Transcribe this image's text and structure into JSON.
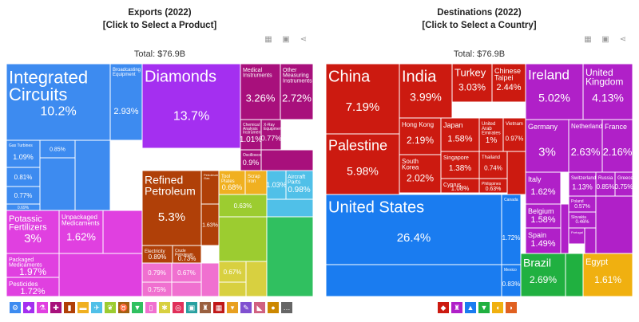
{
  "chart_data": [
    {
      "type": "treemap",
      "title": "Exports (2022)",
      "subtitle": "[Click to Select a Product]",
      "total_label": "Total: $76.9B",
      "cells": [
        {
          "name": "Integrated Circuits",
          "value": "10.2%",
          "color": "#3d8bf0"
        },
        {
          "name": "Broadcasting Equipment",
          "value": "2.93%",
          "color": "#3d8bf0"
        },
        {
          "name": "Diamonds",
          "value": "13.7%",
          "color": "#a42ff0"
        },
        {
          "name": "Medical Instruments",
          "value": "3.26%",
          "color": "#a8107c"
        },
        {
          "name": "Other Measuring Instruments",
          "value": "2.72%",
          "color": "#a8107c"
        },
        {
          "name": "Chemical Analysis Instruments",
          "value": "1.01%",
          "color": "#a8107c"
        },
        {
          "name": "X-Ray Equipment",
          "value": "0.77%",
          "color": "#a8107c"
        },
        {
          "name": "Oscilloscopes",
          "value": "0.9%",
          "color": "#a8107c"
        },
        {
          "name": "Gas Turbines",
          "value": "1.09%",
          "color": "#3d8bf0"
        },
        {
          "name": "",
          "value": "0.85%",
          "color": "#3d8bf0"
        },
        {
          "name": "",
          "value": "0.81%",
          "color": "#3d8bf0"
        },
        {
          "name": "",
          "value": "0.77%",
          "color": "#3d8bf0"
        },
        {
          "name": "",
          "value": "0.69%",
          "color": "#3d8bf0"
        },
        {
          "name": "Refined Petroleum",
          "value": "5.3%",
          "color": "#b04008"
        },
        {
          "name": "Petroleum Gas",
          "value": "",
          "color": "#b04008"
        },
        {
          "name": "",
          "value": "1.63%",
          "color": "#b04008"
        },
        {
          "name": "Electricity",
          "value": "0.89%",
          "color": "#b04008"
        },
        {
          "name": "Crude Petroleum",
          "value": "0.73%",
          "color": "#b04008"
        },
        {
          "name": "Tool Plates",
          "value": "0.68%",
          "color": "#f0b020"
        },
        {
          "name": "Scrap Iron",
          "value": "",
          "color": "#f0b020"
        },
        {
          "name": "Aircraft Parts",
          "value": "0.98%",
          "color": "#50c0e8"
        },
        {
          "name": "",
          "value": "1.03%",
          "color": "#50c0e8"
        },
        {
          "name": "Potassic Fertilizers",
          "value": "3%",
          "color": "#e040e0"
        },
        {
          "name": "Unpackaged Medicaments",
          "value": "1.62%",
          "color": "#e040e0"
        },
        {
          "name": "Packaged Medicaments",
          "value": "1.97%",
          "color": "#e040e0"
        },
        {
          "name": "Pesticides",
          "value": "1.72%",
          "color": "#e040e0"
        },
        {
          "name": "",
          "value": "0.79%",
          "color": "#f070d0"
        },
        {
          "name": "",
          "value": "0.67%",
          "color": "#f070d0"
        },
        {
          "name": "",
          "value": "0.75%",
          "color": "#f070d0"
        },
        {
          "name": "",
          "value": "0.63%",
          "color": "#9ccc30"
        },
        {
          "name": "",
          "value": "0.67%",
          "color": "#d8d040"
        }
      ]
    },
    {
      "type": "treemap",
      "title": "Destinations (2022)",
      "subtitle": "[Click to Select a Country]",
      "total_label": "Total: $76.9B",
      "cells": [
        {
          "name": "China",
          "value": "7.19%",
          "color": "#cc1a10"
        },
        {
          "name": "India",
          "value": "3.99%",
          "color": "#cc1a10"
        },
        {
          "name": "Turkey",
          "value": "3.03%",
          "color": "#cc1a10"
        },
        {
          "name": "Chinese Taipei",
          "value": "2.44%",
          "color": "#cc1a10"
        },
        {
          "name": "Palestine",
          "value": "5.98%",
          "color": "#cc1a10"
        },
        {
          "name": "Hong Kong",
          "value": "2.19%",
          "color": "#cc1a10"
        },
        {
          "name": "Japan",
          "value": "1.58%",
          "color": "#cc1a10"
        },
        {
          "name": "United Arab Emirates",
          "value": "1%",
          "color": "#cc1a10"
        },
        {
          "name": "Vietnam",
          "value": "0.97%",
          "color": "#cc1a10"
        },
        {
          "name": "Singapore",
          "value": "1.38%",
          "color": "#cc1a10"
        },
        {
          "name": "South Korea",
          "value": "2.02%",
          "color": "#cc1a10"
        },
        {
          "name": "Thailand",
          "value": "0.74%",
          "color": "#cc1a10"
        },
        {
          "name": "Cyprus",
          "value": "1.08%",
          "color": "#cc1a10"
        },
        {
          "name": "Philippines",
          "value": "0.63%",
          "color": "#cc1a10"
        },
        {
          "name": "United States",
          "value": "26.4%",
          "color": "#1a7cf0"
        },
        {
          "name": "Canada",
          "value": "1.72%",
          "color": "#1a7cf0"
        },
        {
          "name": "Mexico",
          "value": "0.83%",
          "color": "#1a7cf0"
        },
        {
          "name": "Ireland",
          "value": "5.02%",
          "color": "#b020c8"
        },
        {
          "name": "United Kingdom",
          "value": "4.13%",
          "color": "#b020c8"
        },
        {
          "name": "Germany",
          "value": "3%",
          "color": "#b020c8"
        },
        {
          "name": "Netherlands",
          "value": "2.63%",
          "color": "#b020c8"
        },
        {
          "name": "France",
          "value": "2.16%",
          "color": "#b020c8"
        },
        {
          "name": "Italy",
          "value": "1.62%",
          "color": "#b020c8"
        },
        {
          "name": "Switzerland",
          "value": "1.13%",
          "color": "#b020c8"
        },
        {
          "name": "Russia",
          "value": "0.85%",
          "color": "#b020c8"
        },
        {
          "name": "Greece",
          "value": "0.75%",
          "color": "#b020c8"
        },
        {
          "name": "Belgium",
          "value": "1.58%",
          "color": "#b020c8"
        },
        {
          "name": "Poland",
          "value": "0.57%",
          "color": "#b020c8"
        },
        {
          "name": "Spain",
          "value": "1.49%",
          "color": "#b020c8"
        },
        {
          "name": "Slovakia",
          "value": "0.46%",
          "color": "#b020c8"
        },
        {
          "name": "Portugal",
          "value": "",
          "color": "#b020c8"
        },
        {
          "name": "Brazil",
          "value": "2.69%",
          "color": "#20b040"
        },
        {
          "name": "Egypt",
          "value": "1.61%",
          "color": "#f0b010"
        }
      ]
    }
  ],
  "left_legend_icons": [
    {
      "icon": "gear-icon",
      "color": "#3d8bf0"
    },
    {
      "icon": "diamond-icon",
      "color": "#a42ff0"
    },
    {
      "icon": "flask-icon",
      "color": "#e040e0"
    },
    {
      "icon": "microscope-icon",
      "color": "#a8107c"
    },
    {
      "icon": "fuel-icon",
      "color": "#b04008"
    },
    {
      "icon": "ingot-icon",
      "color": "#f0b020"
    },
    {
      "icon": "plane-icon",
      "color": "#50c0e8"
    },
    {
      "icon": "leaf-icon",
      "color": "#9ccc30"
    },
    {
      "icon": "cow-icon",
      "color": "#a06010"
    },
    {
      "icon": "shirt-icon",
      "color": "#30c060"
    },
    {
      "icon": "bottle-icon",
      "color": "#f070d0"
    },
    {
      "icon": "wheat-icon",
      "color": "#d8d040"
    },
    {
      "icon": "tire-icon",
      "color": "#e0305a"
    },
    {
      "icon": "box-icon",
      "color": "#28a0a0"
    },
    {
      "icon": "chair-icon",
      "color": "#9a6040"
    },
    {
      "icon": "brick-icon",
      "color": "#c01818"
    },
    {
      "icon": "cup-icon",
      "color": "#e8a020"
    },
    {
      "icon": "paint-icon",
      "color": "#8050d0"
    },
    {
      "icon": "shoe-icon",
      "color": "#d06080"
    },
    {
      "icon": "coin-icon",
      "color": "#cc8800"
    },
    {
      "icon": "ellipsis-icon",
      "color": "#666666"
    }
  ],
  "right_legend_icons": [
    {
      "icon": "asia-icon",
      "color": "#cc1a10"
    },
    {
      "icon": "europe-icon",
      "color": "#b020c8"
    },
    {
      "icon": "north-america-icon",
      "color": "#1a7cf0"
    },
    {
      "icon": "south-america-icon",
      "color": "#20b040"
    },
    {
      "icon": "africa-icon",
      "color": "#f0b010"
    },
    {
      "icon": "oceania-icon",
      "color": "#e06020"
    }
  ]
}
